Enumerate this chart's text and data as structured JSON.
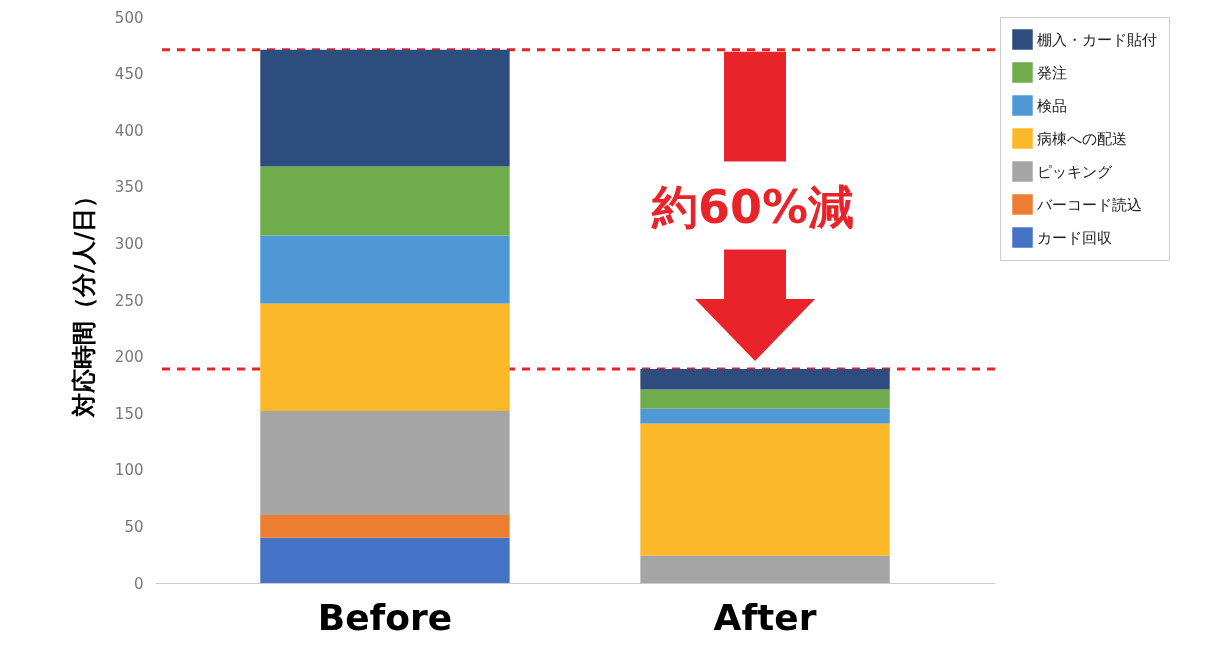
{
  "chart_data": {
    "type": "bar",
    "stacked": true,
    "ylabel": "対応時間（分/人/日）",
    "categories": [
      "Before",
      "After"
    ],
    "series": [
      {
        "name": "カード回収",
        "color": "#4472c4",
        "values": [
          40,
          0
        ]
      },
      {
        "name": "バーコード読込",
        "color": "#ed7d31",
        "values": [
          20,
          0
        ]
      },
      {
        "name": "ピッキング",
        "color": "#a5a5a5",
        "values": [
          92,
          24
        ]
      },
      {
        "name": "病棟への配送",
        "color": "#fbb829",
        "values": [
          95,
          117
        ]
      },
      {
        "name": "検品",
        "color": "#4e98d6",
        "values": [
          60,
          13
        ]
      },
      {
        "name": "発注",
        "color": "#6fac4b",
        "values": [
          61,
          17
        ]
      },
      {
        "name": "棚入・カード貼付",
        "color": "#2d4d7e",
        "values": [
          103,
          18
        ]
      }
    ],
    "ylim": [
      0,
      500
    ],
    "yticks": [
      0,
      50,
      100,
      150,
      200,
      250,
      300,
      350,
      400,
      450,
      500
    ],
    "grid": false,
    "legend": "right",
    "ref_lines": [
      {
        "axis": "y",
        "value": 471,
        "color": "#e8242a",
        "line_style": "dashed"
      },
      {
        "axis": "y",
        "value": 189,
        "color": "#e8242a",
        "line_style": "dashed"
      }
    ],
    "annotations": [
      "約60%減"
    ]
  }
}
